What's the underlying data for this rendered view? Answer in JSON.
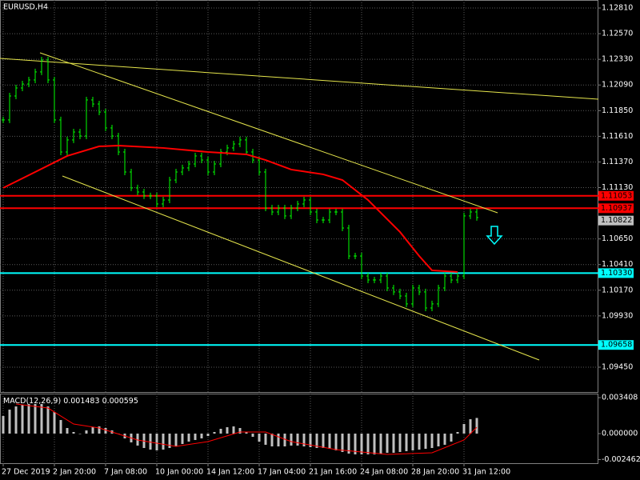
{
  "chart_data": {
    "type": "bar",
    "title": "EURUSD,H4",
    "color": "#00ff00",
    "ma_color": "#ff0000",
    "grid": true,
    "ylim": [
      1.09218,
      1.12885
    ],
    "yticks": [
      {
        "value": 1.1281,
        "label": "1.12810"
      },
      {
        "value": 1.1257,
        "label": "1.12570"
      },
      {
        "value": 1.1233,
        "label": "1.12330"
      },
      {
        "value": 1.1209,
        "label": "1.12090"
      },
      {
        "value": 1.1185,
        "label": "1.11850"
      },
      {
        "value": 1.1161,
        "label": "1.11610"
      },
      {
        "value": 1.1137,
        "label": "1.11370"
      },
      {
        "value": 1.1113,
        "label": "1.11130"
      },
      {
        "value": 1.1065,
        "label": "1.10650"
      },
      {
        "value": 1.1041,
        "label": "1.10410"
      },
      {
        "value": 1.1017,
        "label": "1.10170"
      },
      {
        "value": 1.0993,
        "label": "1.09930"
      },
      {
        "value": 1.0945,
        "label": "1.09450"
      }
    ],
    "xticks": [
      {
        "value": 0,
        "label": "27 Dec 2019"
      },
      {
        "value": 8,
        "label": "2 Jan 20:00"
      },
      {
        "value": 16,
        "label": "7 Jan 08:00"
      },
      {
        "value": 24,
        "label": "10 Jan 00:00"
      },
      {
        "value": 32,
        "label": "14 Jan 12:00"
      },
      {
        "value": 40,
        "label": "17 Jan 04:00"
      },
      {
        "value": 48,
        "label": "21 Jan 16:00"
      },
      {
        "value": 56,
        "label": "24 Jan 08:00"
      },
      {
        "value": 64,
        "label": "28 Jan 20:00"
      },
      {
        "value": 72,
        "label": "31 Jan 12:00"
      }
    ],
    "values": [
      1.11763,
      1.11987,
      1.12062,
      1.12099,
      1.12137,
      1.12212,
      1.12324,
      1.12137,
      1.11763,
      1.11463,
      1.11576,
      1.1165,
      1.11613,
      1.1195,
      1.11912,
      1.11837,
      1.11688,
      1.11613,
      1.11463,
      1.11276,
      1.11127,
      1.11089,
      1.11052,
      1.11052,
      1.10977,
      1.11014,
      1.11201,
      1.11276,
      1.11314,
      1.11351,
      1.11426,
      1.11388,
      1.11276,
      1.11351,
      1.11463,
      1.11501,
      1.11538,
      1.11576,
      1.11463,
      1.11388,
      1.11276,
      1.10939,
      1.10902,
      1.10939,
      1.10865,
      1.10939,
      1.10977,
      1.11014,
      1.10902,
      1.10827,
      1.10827,
      1.10902,
      1.10902,
      1.10752,
      1.1049,
      1.1049,
      1.10303,
      1.10266,
      1.10266,
      1.10303,
      1.10191,
      1.10154,
      1.10116,
      1.10042,
      1.10191,
      1.10154,
      1.10004,
      1.10042,
      1.10191,
      1.10303,
      1.10266,
      1.10303,
      1.10865,
      1.10902,
      1.1085
    ],
    "ma": {
      "x": [
        0,
        5,
        10,
        15,
        18,
        25,
        32,
        38,
        41,
        45,
        50,
        53,
        57,
        62,
        65,
        67,
        71
      ],
      "values": [
        1.11127,
        1.11276,
        1.11426,
        1.11516,
        1.11523,
        1.11501,
        1.11463,
        1.11441,
        1.11388,
        1.11299,
        1.11254,
        1.11201,
        1.11014,
        1.10715,
        1.1049,
        1.10356,
        1.10341
      ]
    },
    "levels": [
      {
        "value": 1.11053,
        "color": "#ff0000"
      },
      {
        "value": 1.10937,
        "color": "#ff0000"
      },
      {
        "value": 1.1033,
        "label": "1.10330",
        "color": "#00ffff"
      },
      {
        "value": 1.09658,
        "color": "#00ffff"
      }
    ],
    "current_price": 1.10822,
    "macd": {
      "label": "MACD(12,26,9)",
      "color": "#c0c0c0",
      "signal_color": "#ff0000",
      "ylim": [
        -0.00288,
        0.00379
      ],
      "yticks": [
        0.003408,
        {
          "value": 0,
          "label": "0.000000"
        },
        -0.002462
      ],
      "values": [
        0.001666,
        0.002272,
        0.002575,
        0.002726,
        0.002802,
        0.002802,
        0.002802,
        0.002575,
        0.002045,
        0.001287,
        0.00053,
        0.000151,
        0,
        0.000303,
        0.000606,
        0.000682,
        0.00053,
        0.000303,
        0,
        -0.000454,
        -0.000833,
        -0.001136,
        -0.001363,
        -0.001515,
        -0.00159,
        -0.001515,
        -0.001363,
        -0.001212,
        -0.000984,
        -0.000757,
        -0.000606,
        -0.000454,
        -0.000227,
        0.000151,
        0.000454,
        0.000606,
        0.000682,
        0.00053,
        0.000151,
        -0.000303,
        -0.000757,
        -0.00106,
        -0.001212,
        -0.001212,
        -0.001212,
        -0.001136,
        -0.001136,
        -0.001212,
        -0.001287,
        -0.001363,
        -0.001363,
        -0.001439,
        -0.00159,
        -0.001742,
        -0.001893,
        -0.001969,
        -0.001969,
        -0.001969,
        -0.001969,
        -0.001893,
        -0.001818,
        -0.001818,
        -0.001742,
        -0.001666,
        -0.00159,
        -0.001515,
        -0.001439,
        -0.001363,
        -0.001212,
        -0.00106,
        -0.000757,
        0.000151,
        0.000909,
        0.001363,
        0.001483
      ],
      "signal": {
        "x": [
          2,
          7,
          11,
          15,
          17,
          21,
          27,
          32,
          37,
          41,
          45,
          52,
          60,
          67,
          72,
          74
        ],
        "values": [
          0.002802,
          0.002423,
          0.000909,
          0.00053,
          0.000151,
          -0.000606,
          -0.001212,
          -0.000757,
          0.000151,
          0.000151,
          -0.000757,
          -0.001515,
          -0.001969,
          -0.001818,
          -0.000606,
          0.000595
        ]
      }
    }
  }
}
